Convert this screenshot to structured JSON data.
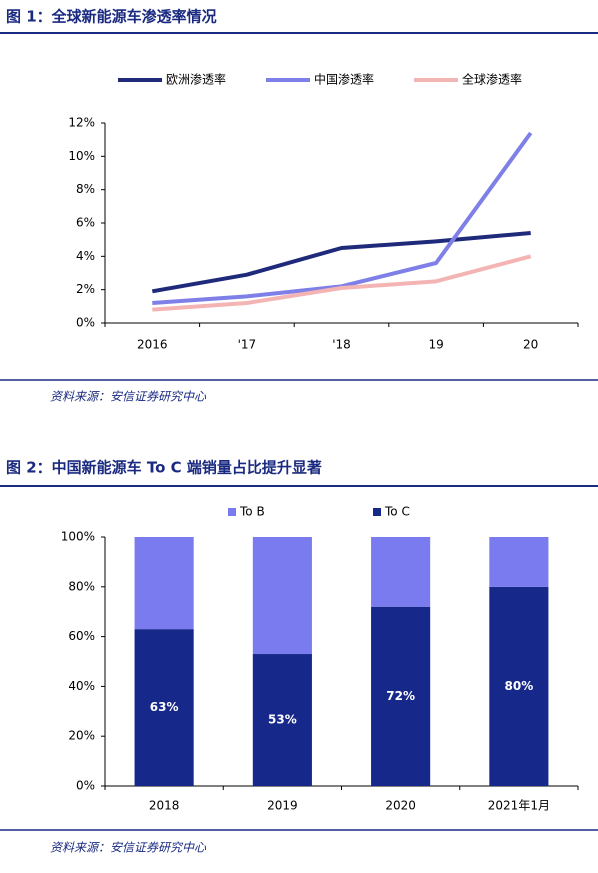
{
  "chart_data": [
    {
      "type": "line",
      "title": "图 1：全球新能源车渗透率情况",
      "source": "资料来源：安信证券研究中心",
      "categories": [
        "2016",
        "'17",
        "'18",
        "19",
        "20"
      ],
      "series": [
        {
          "name": "欧洲渗透率",
          "color": "#1f2a7a",
          "values": [
            1.9,
            2.9,
            4.5,
            4.9,
            5.4
          ]
        },
        {
          "name": "中国渗透率",
          "color": "#7f7fe8",
          "values": [
            1.2,
            1.6,
            2.2,
            3.6,
            11.4
          ]
        },
        {
          "name": "全球渗透率",
          "color": "#f4b4b4",
          "values": [
            0.8,
            1.2,
            2.1,
            2.5,
            4.0
          ]
        }
      ],
      "ylim": [
        0,
        12
      ],
      "yticks": [
        {
          "value": 0,
          "label": "0%"
        },
        {
          "value": 2,
          "label": "2%"
        },
        {
          "value": 4,
          "label": "4%"
        },
        {
          "value": 6,
          "label": "6%"
        },
        {
          "value": 8,
          "label": "8%"
        },
        {
          "value": 10,
          "label": "10%"
        },
        {
          "value": 12,
          "label": "12%"
        }
      ],
      "legend": "top"
    },
    {
      "type": "bar",
      "stacked": true,
      "title": "图 2：中国新能源车 To C 端销量占比提升显著",
      "source": "资料来源：安信证券研究中心",
      "categories": [
        "2018",
        "2019",
        "2020",
        "2021年1月"
      ],
      "series": [
        {
          "name": "To B",
          "color": "#7b7bf0",
          "values": [
            37,
            47,
            28,
            20
          ]
        },
        {
          "name": "To C",
          "color": "#16288a",
          "values": [
            63,
            53,
            72,
            80
          ],
          "value_labels": [
            "63%",
            "53%",
            "72%",
            "80%"
          ]
        }
      ],
      "ylim": [
        0,
        100
      ],
      "yticks": [
        {
          "value": 0,
          "label": "0%"
        },
        {
          "value": 20,
          "label": "20%"
        },
        {
          "value": 40,
          "label": "40%"
        },
        {
          "value": 60,
          "label": "60%"
        },
        {
          "value": 80,
          "label": "80%"
        },
        {
          "value": 100,
          "label": "100%"
        }
      ],
      "legend": "top"
    }
  ]
}
